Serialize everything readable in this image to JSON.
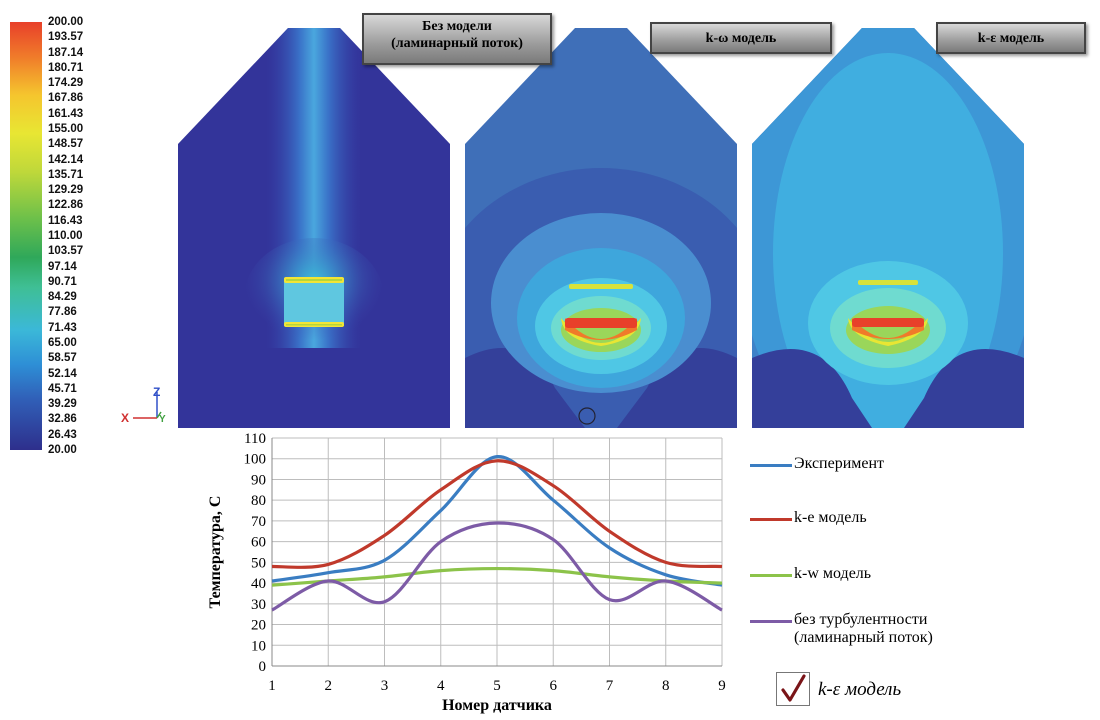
{
  "colorbar": {
    "labels": [
      "200.00",
      "193.57",
      "187.14",
      "180.71",
      "174.29",
      "167.86",
      "161.43",
      "155.00",
      "148.57",
      "142.14",
      "135.71",
      "129.29",
      "122.86",
      "116.43",
      "110.00",
      "103.57",
      "97.14",
      "90.71",
      "84.29",
      "77.86",
      "71.43",
      "65.00",
      "58.57",
      "52.14",
      "45.71",
      "39.29",
      "32.86",
      "26.43",
      "20.00"
    ]
  },
  "axes_icon": {
    "x": "X",
    "y": "Y",
    "z": "Z"
  },
  "panels": [
    {
      "label_line1": "Без модели",
      "label_line2": "(ламинарный поток)"
    },
    {
      "label_line1": "k-ω модель",
      "label_line2": ""
    },
    {
      "label_line1": "k-ε модель",
      "label_line2": ""
    }
  ],
  "chart_data": {
    "type": "line",
    "xlabel": "Номер датчика",
    "ylabel": "Температура, С",
    "x": [
      1,
      2,
      3,
      4,
      5,
      6,
      7,
      8,
      9
    ],
    "xlim": [
      1,
      9
    ],
    "ylim": [
      0,
      110
    ],
    "yticks": [
      0,
      10,
      20,
      30,
      40,
      50,
      60,
      70,
      80,
      90,
      100,
      110
    ],
    "grid": true,
    "legend_position": "right",
    "series": [
      {
        "name": "Эксперимент",
        "color": "#3a7dc2",
        "values": [
          41,
          45,
          51,
          75,
          101,
          80,
          57,
          44,
          39
        ]
      },
      {
        "name": "k-e модель",
        "color": "#c0392b",
        "values": [
          48,
          49,
          63,
          85,
          99,
          87,
          65,
          50,
          48
        ]
      },
      {
        "name": "k-w модель",
        "color": "#8cc34a",
        "values": [
          39,
          41,
          43,
          46,
          47,
          46,
          43,
          41,
          40
        ]
      },
      {
        "name": "без турбулентности (ламинарный  поток)",
        "legend_line1": "без турбулентности",
        "legend_line2": "(ламинарный  поток)",
        "color": "#7d5ba6",
        "values": [
          27,
          41,
          31,
          60,
          69,
          61,
          32,
          41,
          27
        ]
      }
    ]
  },
  "checkbox": {
    "mark": "✓",
    "label": "k-ε модель"
  }
}
